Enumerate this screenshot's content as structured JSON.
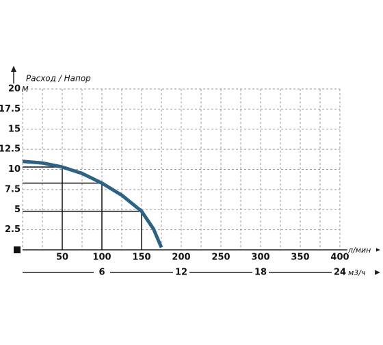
{
  "chart_data": {
    "type": "line",
    "title": "Расход / Напор",
    "y_unit": "М",
    "x_unit": "л/мин",
    "x2_unit": "м3/ч",
    "x": [
      0,
      25,
      50,
      75,
      100,
      125,
      150,
      165,
      175
    ],
    "series": [
      {
        "name": "Напор",
        "color": "#2a6386",
        "values": [
          11,
          10.8,
          10.3,
          9.5,
          8.3,
          6.8,
          4.8,
          2.6,
          0.3
        ]
      }
    ],
    "xlim": [
      0,
      400
    ],
    "xticks": [
      50,
      100,
      150,
      200,
      250,
      300,
      350,
      400
    ],
    "ylim": [
      0,
      20
    ],
    "yticks": [
      2.5,
      5,
      7.5,
      10,
      12.5,
      15,
      17.5,
      20
    ],
    "x2lim": [
      0,
      24
    ],
    "x2ticks": [
      6,
      12,
      18,
      24
    ],
    "grid": true
  }
}
